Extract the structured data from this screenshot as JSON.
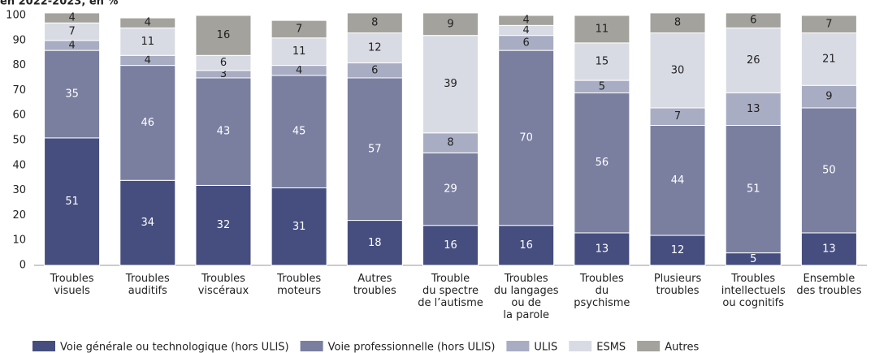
{
  "chart_data": {
    "type": "bar",
    "stacked": true,
    "title": "en 2022-2023, en %",
    "categories": [
      "Troubles\nvisuels",
      "Troubles\nauditifs",
      "Troubles\nviscéraux",
      "Troubles\nmoteurs",
      "Autres\ntroubles",
      "Trouble\ndu spectre\nde l’autisme",
      "Troubles\ndu langages\nou de\nla parole",
      "Troubles\ndu\npsychisme",
      "Plusieurs\ntroubles",
      "Troubles\nintellectuels\nou cognitifs",
      "Ensemble\ndes troubles"
    ],
    "series": [
      {
        "name": "Voie générale ou technologique (hors ULIS)",
        "color": "#454e7e",
        "values": [
          51,
          34,
          32,
          31,
          18,
          16,
          16,
          13,
          12,
          5,
          13
        ]
      },
      {
        "name": "Voie professionnelle (hors ULIS)",
        "color": "#7a7fa0",
        "values": [
          35,
          46,
          43,
          45,
          57,
          29,
          70,
          56,
          44,
          51,
          50
        ]
      },
      {
        "name": "ULIS",
        "color": "#a9adc3",
        "values": [
          4,
          4,
          3,
          4,
          6,
          8,
          6,
          5,
          7,
          13,
          9
        ]
      },
      {
        "name": "ESMS",
        "color": "#d9dbe4",
        "values": [
          7,
          11,
          6,
          11,
          12,
          39,
          4,
          15,
          30,
          26,
          21
        ]
      },
      {
        "name": "Autres",
        "color": "#a3a29c",
        "values": [
          4,
          4,
          16,
          7,
          8,
          9,
          4,
          11,
          8,
          6,
          7
        ]
      }
    ],
    "ylim": [
      0,
      100
    ],
    "yticks": [
      0,
      10,
      20,
      30,
      40,
      50,
      60,
      70,
      80,
      90,
      100
    ],
    "legend": "bottom"
  }
}
